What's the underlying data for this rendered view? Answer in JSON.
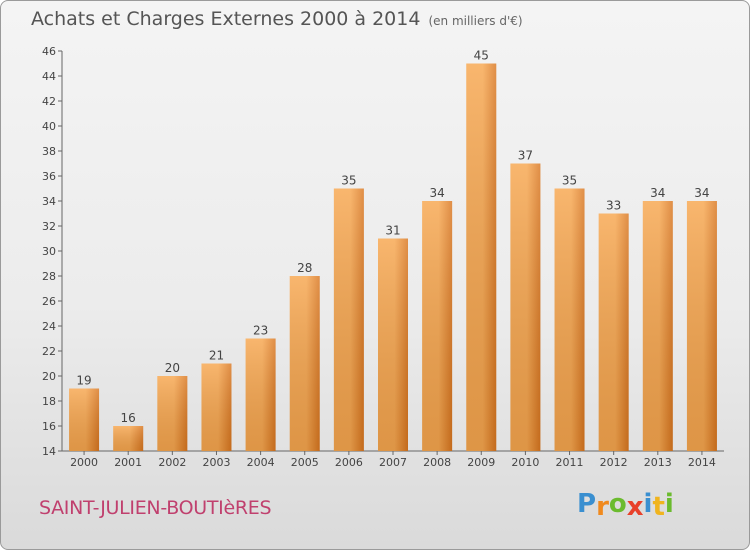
{
  "chart_data": {
    "type": "bar",
    "title": "Achats et Charges Externes 2000 à 2014",
    "subtitle": "(en milliers d'€)",
    "xlabel": "",
    "ylabel": "",
    "categories": [
      "2000",
      "2001",
      "2002",
      "2003",
      "2004",
      "2005",
      "2006",
      "2007",
      "2008",
      "2009",
      "2010",
      "2011",
      "2012",
      "2013",
      "2014"
    ],
    "values": [
      19,
      16,
      20,
      21,
      23,
      28,
      35,
      31,
      34,
      45,
      37,
      35,
      33,
      34,
      34
    ],
    "ylim": [
      14,
      46
    ],
    "yticks": [
      14,
      16,
      18,
      20,
      22,
      24,
      26,
      28,
      30,
      32,
      34,
      36,
      38,
      40,
      42,
      44,
      46
    ],
    "grid": false,
    "bar_color_light": "#f7a64e",
    "bar_color_dark": "#d9761f"
  },
  "footer": {
    "commune": "SAINT-JULIEN-BOUTIèRES",
    "logo_letters": [
      "P",
      "r",
      "o",
      "x",
      "i",
      "t",
      "i"
    ],
    "logo_colors": [
      "#3a8fd0",
      "#f08a1e",
      "#6bbb2e",
      "#e8402a",
      "#3a8fd0",
      "#f0b41e",
      "#6bbb2e"
    ]
  }
}
